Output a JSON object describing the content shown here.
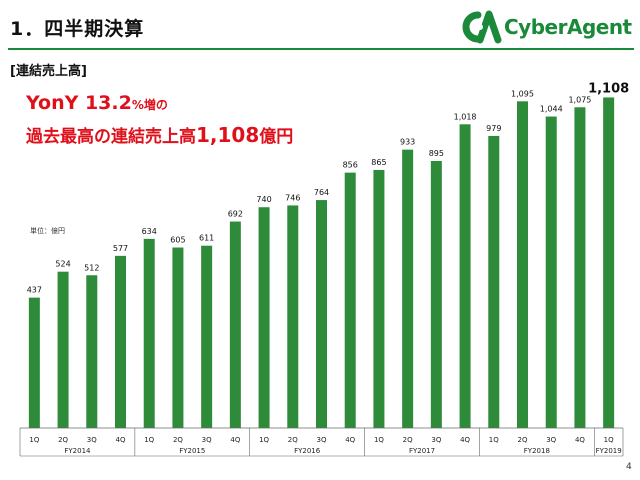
{
  "header": {
    "title": "1．四半期決算",
    "section": "[連結売上高]",
    "brand": "CyberAgent"
  },
  "headline": {
    "line1_main": "YonY 13.2",
    "line1_suffix": "%増の",
    "line2_main": "過去最高の連結売上高",
    "line2_value": "1,108",
    "line2_unit": "億円"
  },
  "unit_label": "単位：億円",
  "page_number": "4",
  "colors": {
    "bar": "#2e8b3a",
    "headline": "#e0101b",
    "brand": "#1a8a3a"
  },
  "chart_data": {
    "type": "bar",
    "categories": [
      "1Q",
      "2Q",
      "3Q",
      "4Q",
      "1Q",
      "2Q",
      "3Q",
      "4Q",
      "1Q",
      "2Q",
      "3Q",
      "4Q",
      "1Q",
      "2Q",
      "3Q",
      "4Q",
      "1Q",
      "2Q",
      "3Q",
      "4Q",
      "1Q"
    ],
    "groups": [
      {
        "label": "FY2014",
        "count": 4
      },
      {
        "label": "FY2015",
        "count": 4
      },
      {
        "label": "FY2016",
        "count": 4
      },
      {
        "label": "FY2017",
        "count": 4
      },
      {
        "label": "FY2018",
        "count": 4
      },
      {
        "label": "FY2019",
        "count": 1
      }
    ],
    "values": [
      437,
      524,
      512,
      577,
      634,
      605,
      611,
      692,
      740,
      746,
      764,
      856,
      865,
      933,
      895,
      1018,
      979,
      1095,
      1044,
      1075,
      1108
    ],
    "value_labels": [
      "437",
      "524",
      "512",
      "577",
      "634",
      "605",
      "611",
      "692",
      "740",
      "746",
      "764",
      "856",
      "865",
      "933",
      "895",
      "1,018",
      "979",
      "1,095",
      "1,044",
      "1,075",
      "1,108"
    ],
    "ylim": [
      0,
      1200
    ],
    "title": "",
    "xlabel": "",
    "ylabel": "",
    "grid": false
  }
}
